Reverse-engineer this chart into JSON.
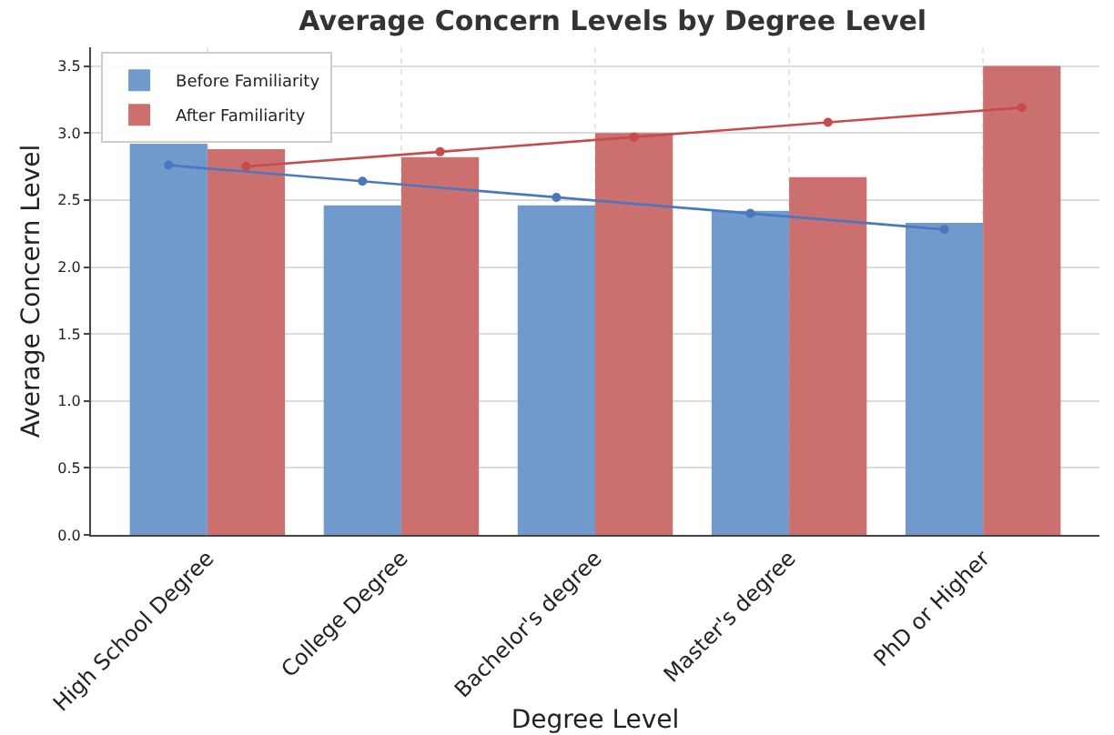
{
  "chart_data": {
    "type": "bar",
    "title": "Average Concern Levels by Degree Level",
    "xlabel": "Degree Level",
    "ylabel": "Average Concern Level",
    "categories": [
      "High School Degree",
      "College Degree",
      "Bachelor's degree",
      "Master's degree",
      "PhD or Higher"
    ],
    "series": [
      {
        "name": "Before Familiarity",
        "color": "#6f9acb",
        "values": [
          2.92,
          2.46,
          2.46,
          2.42,
          2.33
        ]
      },
      {
        "name": "After Familiarity",
        "color": "#cb706f",
        "values": [
          2.88,
          2.82,
          3.0,
          2.67,
          3.5
        ]
      },
      {
        "type": "line",
        "color": "#4a78c0",
        "x": [
          "High School Degree",
          "College Degree",
          "Bachelor's degree",
          "Master's degree",
          "PhD or Higher"
        ],
        "values": [
          2.76,
          2.64,
          2.52,
          2.4,
          2.28
        ]
      },
      {
        "type": "line",
        "color": "#c84a4a",
        "x": [
          "High School Degree",
          "College Degree",
          "Bachelor's degree",
          "Master's degree",
          "PhD or Higher"
        ],
        "values": [
          2.75,
          2.86,
          2.97,
          3.08,
          3.19
        ]
      }
    ],
    "ylim": [
      0,
      3.64
    ],
    "yticks": [
      {
        "value": 0,
        "label": "0.0"
      },
      {
        "value": 0.5,
        "label": "0.5"
      },
      {
        "value": 1,
        "label": "1.0"
      },
      {
        "value": 1.5,
        "label": "1.5"
      },
      {
        "value": 2,
        "label": "2.0"
      },
      {
        "value": 2.5,
        "label": "2.5"
      },
      {
        "value": 3,
        "label": "3.0"
      },
      {
        "value": 3.5,
        "label": "3.5"
      }
    ],
    "grid": true,
    "legend": "top left",
    "marker": "circle"
  }
}
